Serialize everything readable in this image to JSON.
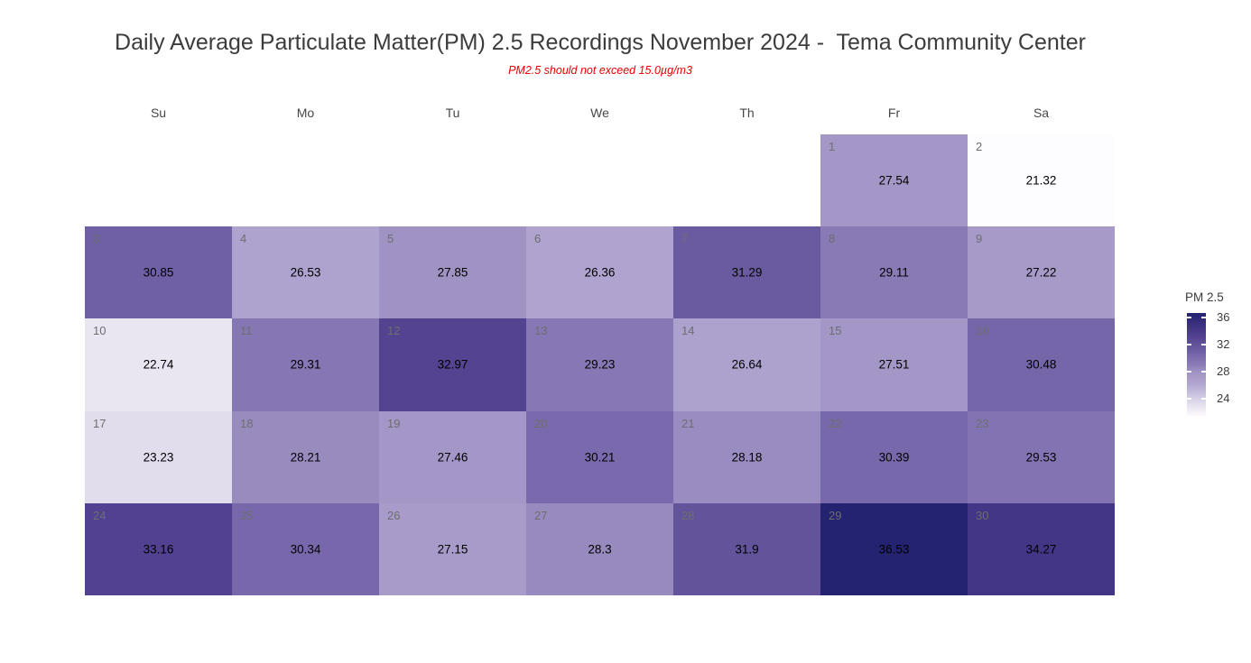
{
  "chart_data": {
    "type": "heatmap",
    "title": "Daily Average Particulate Matter(PM) 2.5 Recordings November 2024 -  Tema Community Center",
    "subtitle": "PM2.5 should not exceed 15.0µg/m3",
    "month": "November 2024",
    "location": "Tema Community Center",
    "unit": "µg/m3",
    "weekday_columns": [
      "Su",
      "Mo",
      "Tu",
      "We",
      "Th",
      "Fr",
      "Sa"
    ],
    "days": [
      {
        "day": 1,
        "week": 0,
        "col": 5,
        "value": 27.54
      },
      {
        "day": 2,
        "week": 0,
        "col": 6,
        "value": 21.32
      },
      {
        "day": 3,
        "week": 1,
        "col": 0,
        "value": 30.85
      },
      {
        "day": 4,
        "week": 1,
        "col": 1,
        "value": 26.53
      },
      {
        "day": 5,
        "week": 1,
        "col": 2,
        "value": 27.85
      },
      {
        "day": 6,
        "week": 1,
        "col": 3,
        "value": 26.36
      },
      {
        "day": 7,
        "week": 1,
        "col": 4,
        "value": 31.29
      },
      {
        "day": 8,
        "week": 1,
        "col": 5,
        "value": 29.11
      },
      {
        "day": 9,
        "week": 1,
        "col": 6,
        "value": 27.22
      },
      {
        "day": 10,
        "week": 2,
        "col": 0,
        "value": 22.74
      },
      {
        "day": 11,
        "week": 2,
        "col": 1,
        "value": 29.31
      },
      {
        "day": 12,
        "week": 2,
        "col": 2,
        "value": 32.97
      },
      {
        "day": 13,
        "week": 2,
        "col": 3,
        "value": 29.23
      },
      {
        "day": 14,
        "week": 2,
        "col": 4,
        "value": 26.64
      },
      {
        "day": 15,
        "week": 2,
        "col": 5,
        "value": 27.51
      },
      {
        "day": 16,
        "week": 2,
        "col": 6,
        "value": 30.48
      },
      {
        "day": 17,
        "week": 3,
        "col": 0,
        "value": 23.23
      },
      {
        "day": 18,
        "week": 3,
        "col": 1,
        "value": 28.21
      },
      {
        "day": 19,
        "week": 3,
        "col": 2,
        "value": 27.46
      },
      {
        "day": 20,
        "week": 3,
        "col": 3,
        "value": 30.21
      },
      {
        "day": 21,
        "week": 3,
        "col": 4,
        "value": 28.18
      },
      {
        "day": 22,
        "week": 3,
        "col": 5,
        "value": 30.39
      },
      {
        "day": 23,
        "week": 3,
        "col": 6,
        "value": 29.53
      },
      {
        "day": 24,
        "week": 4,
        "col": 0,
        "value": 33.16
      },
      {
        "day": 25,
        "week": 4,
        "col": 1,
        "value": 30.34
      },
      {
        "day": 26,
        "week": 4,
        "col": 2,
        "value": 27.15
      },
      {
        "day": 27,
        "week": 4,
        "col": 3,
        "value": 28.3
      },
      {
        "day": 28,
        "week": 4,
        "col": 4,
        "value": 31.9
      },
      {
        "day": 29,
        "week": 4,
        "col": 5,
        "value": 36.53
      },
      {
        "day": 30,
        "week": 4,
        "col": 6,
        "value": 34.27
      }
    ],
    "value_min": 21.32,
    "value_max": 36.53,
    "color_scale": {
      "stops": [
        [
          21.3,
          "#fdfcfe"
        ],
        [
          23.0,
          "#e5e1ef"
        ],
        [
          24.0,
          "#d4cfe5"
        ],
        [
          26.0,
          "#b3a7d1"
        ],
        [
          27.0,
          "#aa9dcb"
        ],
        [
          28.0,
          "#9e90c2"
        ],
        [
          29.0,
          "#8a7ab6"
        ],
        [
          30.0,
          "#7d6daf"
        ],
        [
          31.0,
          "#6d5ea4"
        ],
        [
          32.0,
          "#615299"
        ],
        [
          33.0,
          "#544391"
        ],
        [
          34.5,
          "#413485"
        ],
        [
          36.6,
          "#232270"
        ]
      ]
    },
    "legend": {
      "title": "PM 2.5",
      "ticks": [
        36,
        32,
        28,
        24
      ],
      "axis_top_value": 36.6,
      "axis_bottom_value": 21.4
    },
    "text_colors": {
      "title": "#3c3c3c",
      "subtitle": "#e60000",
      "weekday_header": "#474747",
      "day_number": "#6e6e6e",
      "value": "#000000",
      "legend": "#3c3c3c"
    },
    "layout": {
      "grid": "off",
      "legend_position": "right"
    }
  }
}
